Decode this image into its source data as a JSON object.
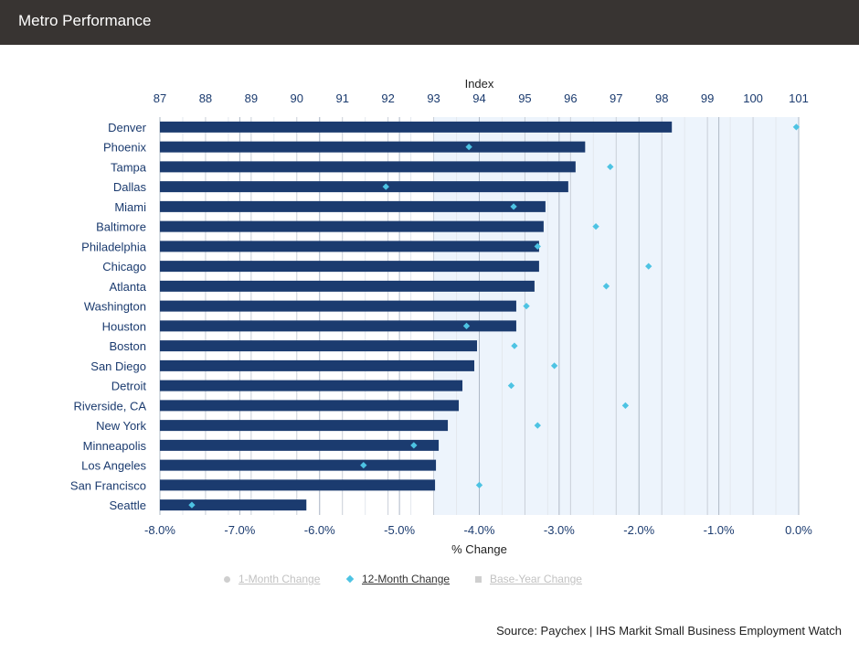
{
  "header": {
    "title": "Metro Performance"
  },
  "legend": {
    "one_month": "1-Month Change",
    "twelve_month": "12-Month Change",
    "base_year": "Base-Year Change"
  },
  "source": "Source: Paychex | IHS Markit Small Business Employment Watch",
  "colors": {
    "bar": "#1b3b6f",
    "marker": "#4dc3e3",
    "shade": "#edf4fc",
    "header_bg": "#383432"
  },
  "chart_data": {
    "type": "bar",
    "orientation": "horizontal",
    "top_axis": {
      "label": "Index",
      "range": [
        87,
        101
      ],
      "ticks": [
        87,
        88,
        89,
        90,
        91,
        92,
        93,
        94,
        95,
        96,
        97,
        98,
        99,
        100,
        101
      ]
    },
    "bottom_axis": {
      "label": "% Change",
      "range": [
        -8.0,
        0.0
      ],
      "ticks": [
        "-8.0%",
        "-7.0%",
        "-6.0%",
        "-5.0%",
        "-4.0%",
        "-3.0%",
        "-2.0%",
        "-1.0%",
        "0.0%"
      ]
    },
    "shaded_index_from": 93,
    "categories": [
      "Denver",
      "Phoenix",
      "Tampa",
      "Dallas",
      "Miami",
      "Baltimore",
      "Philadelphia",
      "Chicago",
      "Atlanta",
      "Washington",
      "Houston",
      "Boston",
      "San Diego",
      "Detroit",
      "Riverside, CA",
      "New York",
      "Minneapolis",
      "Los Angeles",
      "San Francisco",
      "Seattle"
    ],
    "series": [
      {
        "name": "Index",
        "axis": "top",
        "values": [
          98.22,
          96.32,
          96.11,
          95.95,
          95.45,
          95.41,
          95.31,
          95.31,
          95.21,
          94.81,
          94.81,
          93.95,
          93.89,
          93.63,
          93.55,
          93.31,
          93.11,
          93.05,
          93.03,
          90.21
        ]
      },
      {
        "name": "12-Month Change",
        "axis": "bottom",
        "values": [
          -0.03,
          -4.13,
          -2.36,
          -5.17,
          -3.57,
          -2.54,
          -3.27,
          -1.88,
          -2.41,
          -3.41,
          -4.16,
          -3.56,
          -3.06,
          -3.6,
          -2.17,
          -3.27,
          -4.82,
          -5.45,
          -4.0,
          -7.6
        ]
      }
    ],
    "legend_entries": [
      "1-Month Change",
      "12-Month Change",
      "Base-Year Change"
    ],
    "legend_active": "12-Month Change",
    "legend_position": "bottom-center",
    "grid": true
  }
}
